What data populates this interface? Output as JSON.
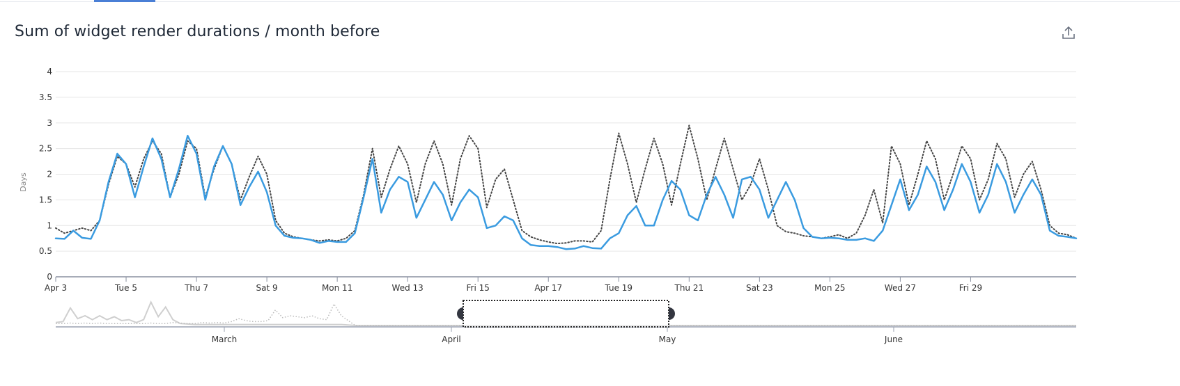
{
  "title": "Sum of widget render durations / month before",
  "export_icon": "export-share-icon",
  "colors": {
    "current": "#3a9be0",
    "previous": "#444444",
    "navigator": "#cfcfcf",
    "handle": "#333640"
  },
  "chart_data": {
    "type": "line",
    "ylabel": "Days",
    "xlabel": "",
    "ylim": [
      0,
      4
    ],
    "y_ticks": [
      "0",
      "0.5",
      "1",
      "1.5",
      "2",
      "2.5",
      "3",
      "3.5",
      "4"
    ],
    "x_range": [
      "Apr 3",
      "May 2"
    ],
    "x_ticks": [
      "Apr 3",
      "Tue 5",
      "Thu 7",
      "Sat 9",
      "Mon 11",
      "Wed 13",
      "Fri 15",
      "Apr 17",
      "Tue 19",
      "Thu 21",
      "Sat 23",
      "Mon 25",
      "Wed 27",
      "Fri 29"
    ],
    "x_start": "Apr 3 00:00",
    "x_interval": "6h",
    "grid": true,
    "legend": "none",
    "series": [
      {
        "style": "solid",
        "values": [
          0.75,
          0.74,
          0.9,
          0.76,
          0.74,
          1.1,
          1.85,
          2.4,
          2.2,
          1.55,
          2.15,
          2.7,
          2.3,
          1.55,
          2.1,
          2.75,
          2.4,
          1.5,
          2.15,
          2.55,
          2.2,
          1.4,
          1.75,
          2.05,
          1.65,
          1.0,
          0.8,
          0.76,
          0.75,
          0.72,
          0.66,
          0.7,
          0.68,
          0.68,
          0.85,
          1.55,
          2.3,
          1.25,
          1.7,
          1.95,
          1.85,
          1.15,
          1.5,
          1.85,
          1.6,
          1.1,
          1.45,
          1.7,
          1.55,
          0.95,
          1.0,
          1.18,
          1.1,
          0.75,
          0.62,
          0.6,
          0.6,
          0.58,
          0.54,
          0.55,
          0.6,
          0.56,
          0.55,
          0.75,
          0.85,
          1.2,
          1.38,
          1.0,
          1.0,
          1.5,
          1.87,
          1.7,
          1.2,
          1.1,
          1.6,
          1.95,
          1.6,
          1.15,
          1.9,
          1.95,
          1.7,
          1.15,
          1.5,
          1.85,
          1.5,
          0.95,
          0.78,
          0.75,
          0.76,
          0.75,
          0.72,
          0.72,
          0.75,
          0.7,
          0.9,
          1.4,
          1.9,
          1.3,
          1.6,
          2.15,
          1.85,
          1.3,
          1.7,
          2.2,
          1.85,
          1.25,
          1.6,
          2.2,
          1.85,
          1.25,
          1.6,
          1.9,
          1.6,
          0.9,
          0.8,
          0.78,
          0.75
        ]
      },
      {
        "style": "dotted",
        "values": [
          0.95,
          0.85,
          0.9,
          0.95,
          0.9,
          1.1,
          1.8,
          2.35,
          2.2,
          1.75,
          2.3,
          2.65,
          2.4,
          1.55,
          2.0,
          2.65,
          2.5,
          1.55,
          2.1,
          2.55,
          2.2,
          1.5,
          1.95,
          2.35,
          2.0,
          1.1,
          0.85,
          0.78,
          0.75,
          0.72,
          0.7,
          0.72,
          0.7,
          0.75,
          0.9,
          1.6,
          2.5,
          1.55,
          2.1,
          2.55,
          2.2,
          1.45,
          2.2,
          2.65,
          2.2,
          1.4,
          2.3,
          2.75,
          2.5,
          1.35,
          1.9,
          2.1,
          1.5,
          0.9,
          0.78,
          0.72,
          0.68,
          0.65,
          0.66,
          0.7,
          0.7,
          0.68,
          0.9,
          1.9,
          2.8,
          2.2,
          1.45,
          2.1,
          2.7,
          2.2,
          1.4,
          2.2,
          2.95,
          2.3,
          1.5,
          2.1,
          2.7,
          2.1,
          1.5,
          1.8,
          2.3,
          1.7,
          1.0,
          0.88,
          0.85,
          0.8,
          0.78,
          0.75,
          0.78,
          0.82,
          0.75,
          0.85,
          1.2,
          1.7,
          1.05,
          2.55,
          2.2,
          1.4,
          2.0,
          2.65,
          2.3,
          1.5,
          2.0,
          2.55,
          2.3,
          1.5,
          1.9,
          2.6,
          2.3,
          1.55,
          2.0,
          2.25,
          1.7,
          1.0,
          0.85,
          0.82,
          0.75
        ]
      }
    ],
    "navigator": {
      "month_labels": [
        "March",
        "April",
        "May",
        "June"
      ],
      "selected_range": [
        "Apr 3",
        "May 2"
      ],
      "series": [
        {
          "style": "solid",
          "values": [
            0.3,
            0.4,
            1.8,
            0.7,
            1.0,
            0.6,
            1.0,
            0.6,
            0.9,
            0.5,
            0.6,
            0.3,
            0.6,
            2.4,
            0.9,
            1.9,
            0.6,
            0.2,
            0.15,
            0.1,
            0.1,
            0.1,
            0.1,
            0.1,
            0.1,
            0.1,
            0.1,
            0.1,
            0.1,
            0.1,
            0.1,
            0.1,
            0.1,
            0.1,
            0.1,
            0.1,
            0.1,
            0.1,
            0.1,
            0.1
          ]
        },
        {
          "style": "dotted",
          "values": [
            0.2,
            0.2,
            0.25,
            0.2,
            0.25,
            0.2,
            0.25,
            0.2,
            0.2,
            0.2,
            0.2,
            0.2,
            0.2,
            0.25,
            0.2,
            0.2,
            0.3,
            0.25,
            0.2,
            0.2,
            0.3,
            0.25,
            0.3,
            0.25,
            0.4,
            0.7,
            0.5,
            0.4,
            0.4,
            0.5,
            1.6,
            0.8,
            1.0,
            0.9,
            0.8,
            1.0,
            0.7,
            0.6,
            2.2,
            1.0
          ]
        }
      ]
    }
  }
}
